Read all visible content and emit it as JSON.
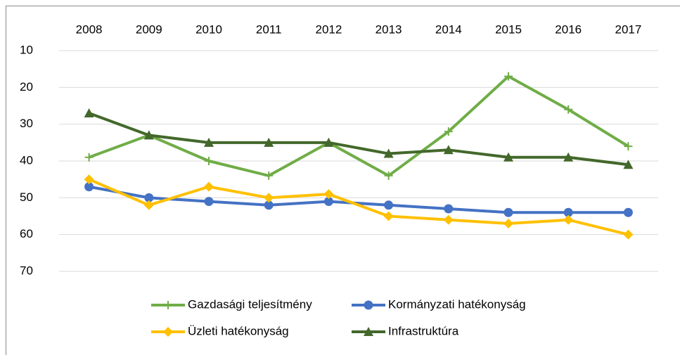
{
  "chart_data": {
    "type": "line",
    "categories": [
      "2008",
      "2009",
      "2010",
      "2011",
      "2012",
      "2013",
      "2014",
      "2015",
      "2016",
      "2017"
    ],
    "series": [
      {
        "name": "Gazdasági teljesítmény",
        "color": "#70ad47",
        "marker": "plus",
        "values": [
          39,
          33,
          40,
          44,
          35,
          44,
          32,
          17,
          26,
          36
        ]
      },
      {
        "name": "Kormányzati hatékonyság",
        "color": "#4472c4",
        "marker": "circle",
        "values": [
          47,
          50,
          51,
          52,
          51,
          52,
          53,
          54,
          54,
          54
        ]
      },
      {
        "name": "Üzleti hatékonyság",
        "color": "#ffc000",
        "marker": "diamond",
        "values": [
          45,
          52,
          47,
          50,
          49,
          55,
          56,
          57,
          56,
          60
        ]
      },
      {
        "name": "Infrastruktúra",
        "color": "#43682b",
        "marker": "triangle",
        "values": [
          27,
          33,
          35,
          35,
          35,
          38,
          37,
          39,
          39,
          41
        ]
      }
    ],
    "ylim": [
      10,
      70
    ],
    "yticks": [
      10,
      20,
      30,
      40,
      50,
      60,
      70
    ],
    "y_inverted": true,
    "grid": true,
    "legend": "bottom"
  }
}
